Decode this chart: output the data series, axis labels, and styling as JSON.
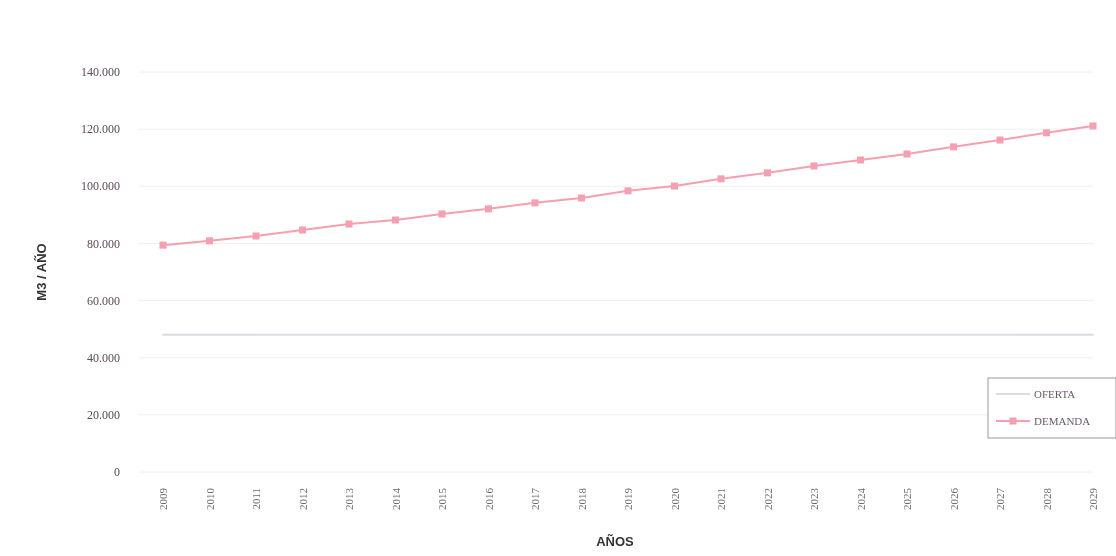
{
  "chart_data": {
    "type": "line",
    "xlabel": "AÑOS",
    "ylabel": "M3 / AÑO",
    "categories": [
      "2009",
      "2010",
      "2011",
      "2012",
      "2013",
      "2014",
      "2015",
      "2016",
      "2017",
      "2018",
      "2019",
      "2020",
      "2021",
      "2022",
      "2023",
      "2024",
      "2025",
      "2026",
      "2027",
      "2028",
      "2029"
    ],
    "series": [
      {
        "name": "OFERTA",
        "color": "#dcdce4",
        "marker": "none",
        "values": [
          48000,
          48000,
          48000,
          48000,
          48000,
          48000,
          48000,
          48000,
          48000,
          48000,
          48000,
          48000,
          48000,
          48000,
          48000,
          48000,
          48000,
          48000,
          48000,
          48000,
          48000
        ]
      },
      {
        "name": "DEMANDA",
        "color": "#f4a0b0",
        "marker": "square",
        "values": [
          79400,
          80900,
          82600,
          84700,
          86800,
          88200,
          90300,
          92100,
          94200,
          95900,
          98400,
          100100,
          102600,
          104700,
          107100,
          109200,
          111300,
          113800,
          116200,
          118700,
          121100
        ]
      }
    ],
    "ylim": [
      0,
      140000
    ],
    "yticks": [
      {
        "value": 0,
        "label": "0"
      },
      {
        "value": 20000,
        "label": "20.000"
      },
      {
        "value": 40000,
        "label": "40.000"
      },
      {
        "value": 60000,
        "label": "60.000"
      },
      {
        "value": 80000,
        "label": "80.000"
      },
      {
        "value": 100000,
        "label": "100.000"
      },
      {
        "value": 120000,
        "label": "120.000"
      },
      {
        "value": 140000,
        "label": "140.000"
      }
    ],
    "grid": "y",
    "legend": "right"
  }
}
